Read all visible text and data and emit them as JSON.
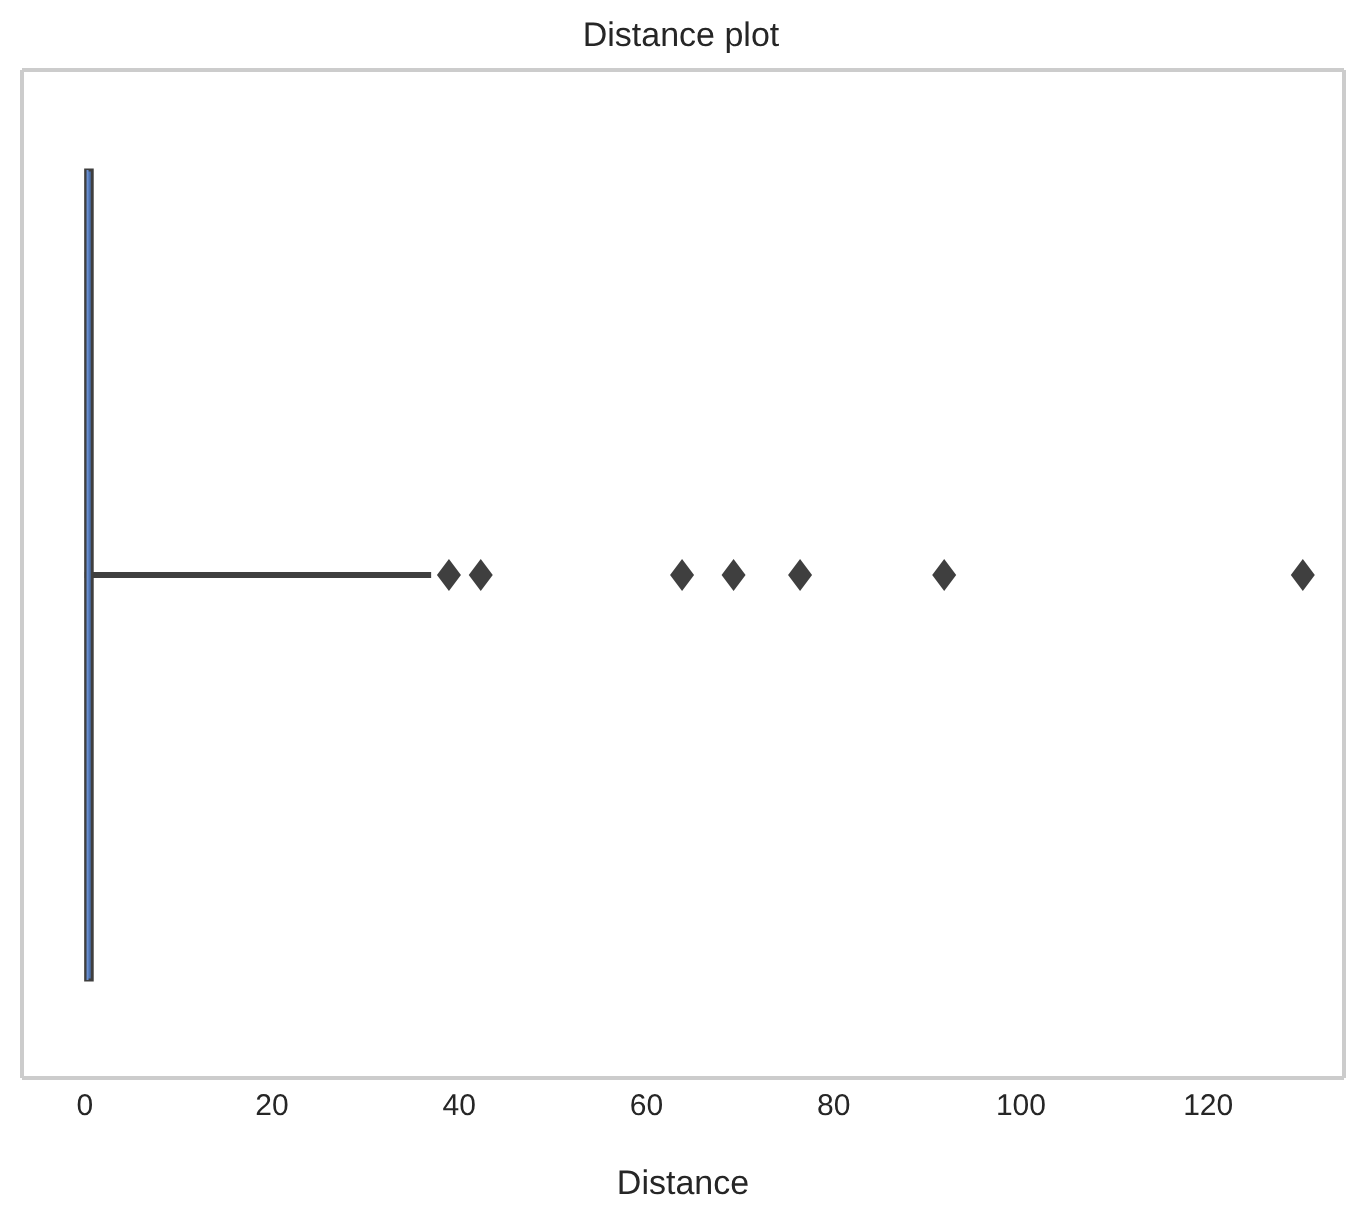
{
  "chart_data": {
    "type": "box",
    "title": "Distance plot",
    "xlabel": "Distance",
    "orientation": "horizontal",
    "categories": [
      null
    ],
    "boxes": [
      {
        "low": 0,
        "q1": 0.1,
        "median": 0.3,
        "q3": 0.8,
        "high": 37,
        "outliers": [
          38.9,
          42.3,
          63.8,
          69.3,
          76.4,
          91.8,
          130.1
        ]
      }
    ],
    "color": "#4c72b0",
    "xlim": [
      -6.7,
      134.5
    ],
    "xticks": [
      0,
      20,
      40,
      60,
      80,
      100,
      120
    ],
    "tick_labels": "x"
  }
}
